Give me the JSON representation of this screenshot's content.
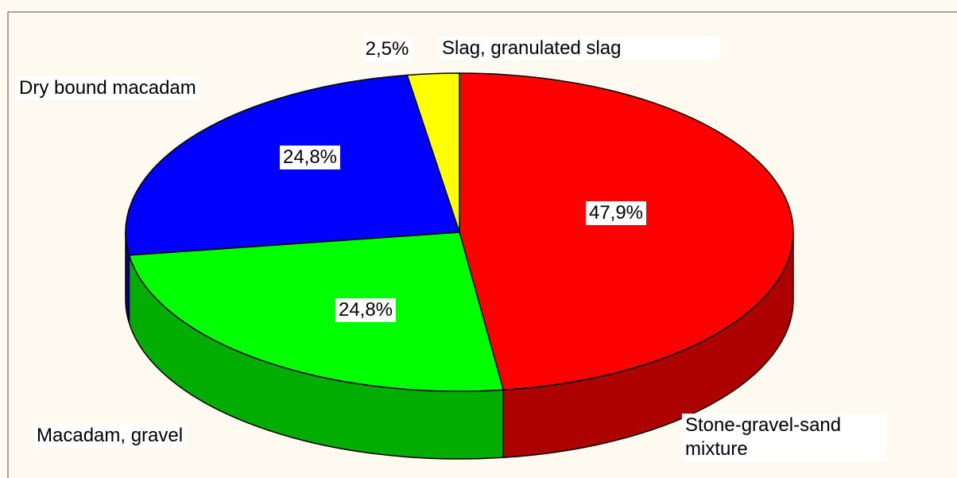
{
  "chart_data": {
    "type": "pie3d",
    "categories": [
      "Stone-gravel-sand mixture",
      "Macadam, gravel",
      "Dry bound macadam",
      "Slag, granulated slag"
    ],
    "values": [
      47.9,
      24.8,
      24.8,
      2.5
    ],
    "value_labels": [
      "47,9%",
      "24,8%",
      "24,8%",
      "2,5%"
    ],
    "colors": [
      "#ff0000",
      "#00ff00",
      "#0000ff",
      "#ffff00"
    ]
  }
}
